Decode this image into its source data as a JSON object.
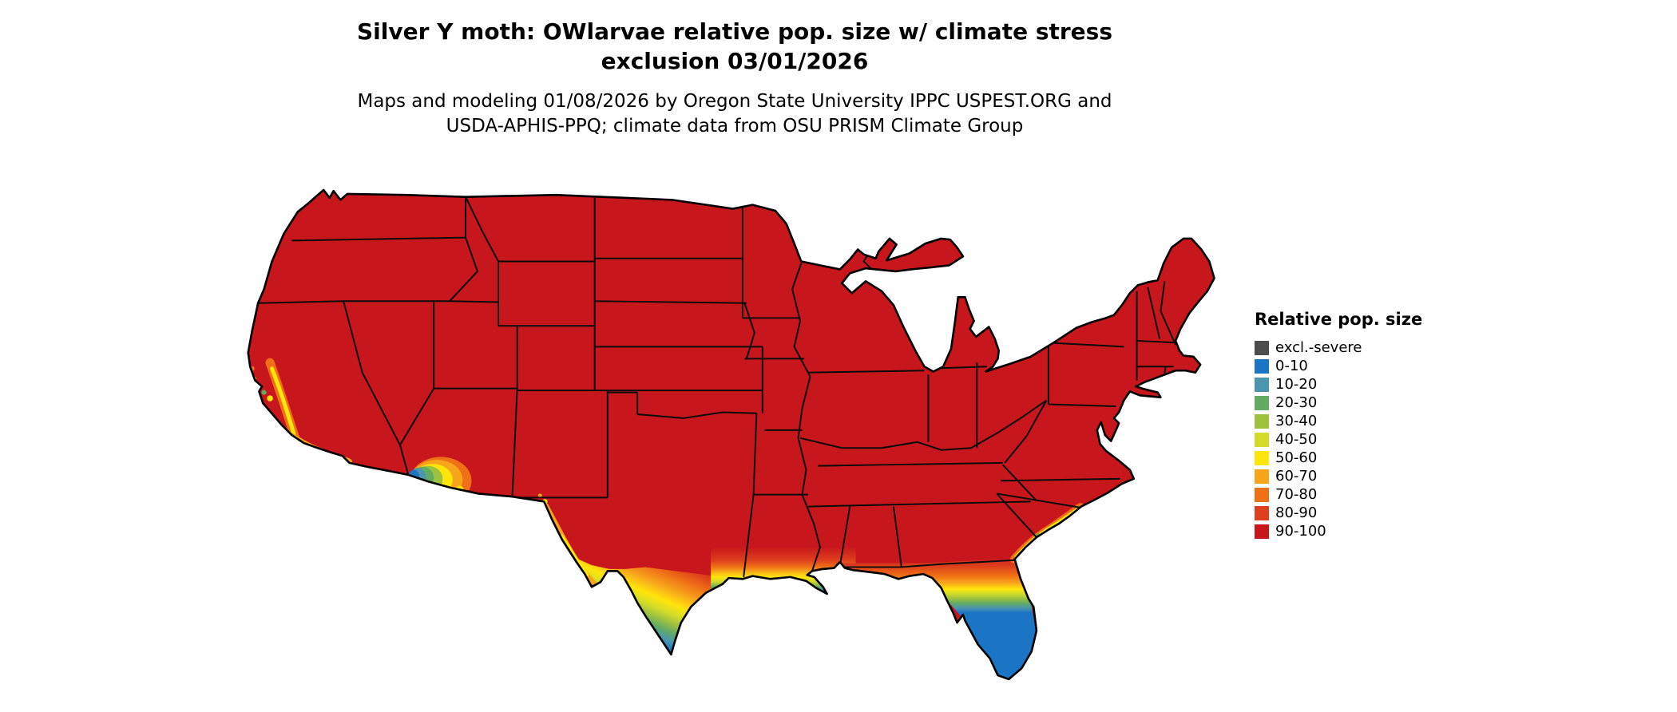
{
  "title": {
    "line1": "Silver Y moth: OWlarvae relative pop. size w/ climate stress",
    "line2": "exclusion 03/01/2026"
  },
  "subtitle": {
    "line1": "Maps and modeling 01/08/2026 by Oregon State University IPPC USPEST.ORG and",
    "line2": "USDA-APHIS-PPQ; climate data from OSU PRISM Climate Group"
  },
  "map": {
    "region": "Continental United States",
    "kind": "relative population size raster with state borders",
    "dominant_class": "90-100"
  },
  "legend": {
    "title": "Relative pop. size",
    "items": [
      {
        "key": "cx",
        "label": "excl.-severe",
        "color": "#4D4D4D"
      },
      {
        "key": "c0",
        "label": "0-10",
        "color": "#1B74C4"
      },
      {
        "key": "c10",
        "label": "10-20",
        "color": "#4B96AE"
      },
      {
        "key": "c20",
        "label": "20-30",
        "color": "#63AB63"
      },
      {
        "key": "c30",
        "label": "30-40",
        "color": "#9EC13E"
      },
      {
        "key": "c40",
        "label": "40-50",
        "color": "#D3DC28"
      },
      {
        "key": "c50",
        "label": "50-60",
        "color": "#FFE50A"
      },
      {
        "key": "c60",
        "label": "60-70",
        "color": "#F7A51B"
      },
      {
        "key": "c70",
        "label": "70-80",
        "color": "#EF7016"
      },
      {
        "key": "c80",
        "label": "80-90",
        "color": "#DE3F1C"
      },
      {
        "key": "c90",
        "label": "90-100",
        "color": "#C8171C"
      }
    ]
  }
}
